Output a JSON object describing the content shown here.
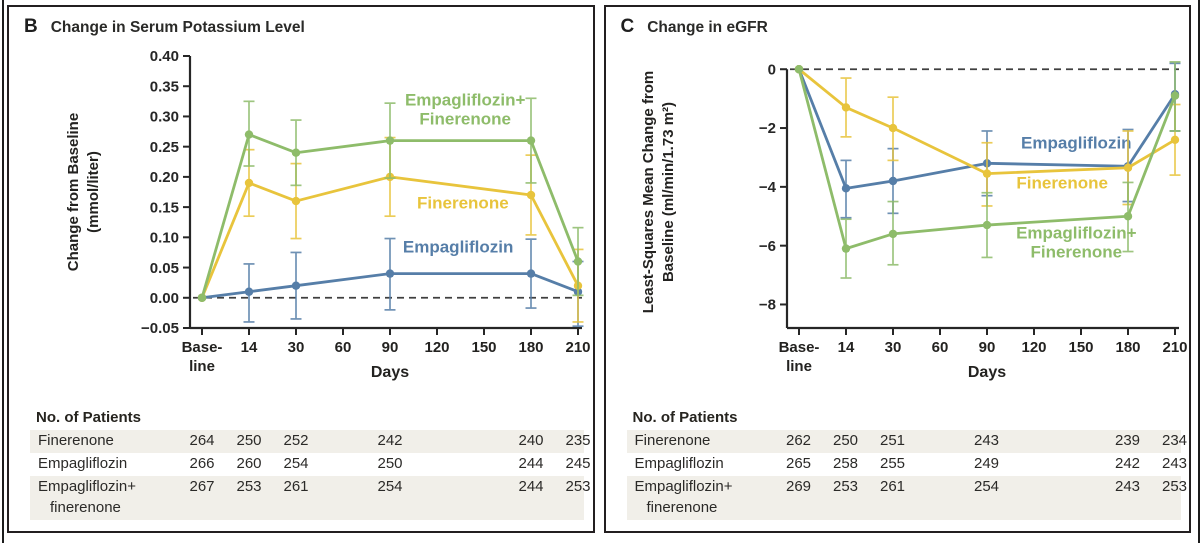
{
  "figure": {
    "panels": [
      {
        "letter": "B",
        "title": "Change in Serum Potassium Level",
        "patients": {
          "header": "No. of Patients",
          "rows": [
            {
              "label_lines": [
                "Finerenone"
              ],
              "shaded": true,
              "values": [
                "264",
                "250",
                "252",
                "242",
                "240",
                "235"
              ]
            },
            {
              "label_lines": [
                "Empagliflozin"
              ],
              "shaded": false,
              "values": [
                "266",
                "260",
                "254",
                "250",
                "244",
                "245"
              ]
            },
            {
              "label_lines": [
                "Empagliflozin+",
                "finerenone"
              ],
              "shaded": true,
              "values": [
                "267",
                "253",
                "261",
                "254",
                "244",
                "253"
              ]
            }
          ]
        }
      },
      {
        "letter": "C",
        "title": "Change in eGFR",
        "patients": {
          "header": "No. of Patients",
          "rows": [
            {
              "label_lines": [
                "Finerenone"
              ],
              "shaded": true,
              "values": [
                "262",
                "250",
                "251",
                "243",
                "239",
                "234"
              ]
            },
            {
              "label_lines": [
                "Empagliflozin"
              ],
              "shaded": false,
              "values": [
                "265",
                "258",
                "255",
                "249",
                "242",
                "243"
              ]
            },
            {
              "label_lines": [
                "Empagliflozin+",
                "finerenone"
              ],
              "shaded": true,
              "values": [
                "269",
                "253",
                "261",
                "254",
                "243",
                "253"
              ]
            }
          ]
        }
      }
    ],
    "colors": {
      "axis": "#262626",
      "dashed_zero_line": "#3f3f3f",
      "empagliflozin_blue": "#567ea8",
      "finerenone_yellow": "#e8c43c",
      "combination_green": "#8ebc6a",
      "table_row_shade": "#f1efe9",
      "text_dark": "#2a2a28"
    }
  },
  "chart_data": [
    {
      "type": "line",
      "panel": "B",
      "title": "Change in Serum Potassium Level",
      "xlabel": "Days",
      "ylabel": "Change from Baseline (mmol/liter)",
      "ylabel_lines": [
        "Change from Baseline",
        "(mmol/liter)"
      ],
      "ylabel_x": 66,
      "x_tick_labels": [
        [
          "Base-",
          "line"
        ],
        "14",
        "30",
        "60",
        "90",
        "120",
        "150",
        "180",
        "210"
      ],
      "x_data_indices": [
        0,
        1,
        2,
        4,
        7,
        8
      ],
      "x_data_days": [
        "Baseline",
        14,
        30,
        90,
        180,
        210
      ],
      "ylim": [
        -0.05,
        0.4
      ],
      "axis_top": 0.4,
      "yticks": [
        {
          "v": 0.4,
          "label": "0.40"
        },
        {
          "v": 0.35,
          "label": "0.35"
        },
        {
          "v": 0.3,
          "label": "0.30"
        },
        {
          "v": 0.25,
          "label": "0.25"
        },
        {
          "v": 0.2,
          "label": "0.20"
        },
        {
          "v": 0.15,
          "label": "0.15"
        },
        {
          "v": 0.1,
          "label": "0.10"
        },
        {
          "v": 0.05,
          "label": "0.05"
        },
        {
          "v": 0.0,
          "label": "0.00"
        },
        {
          "v": -0.05,
          "label": "−0.05"
        }
      ],
      "zero_dashed_line": true,
      "legend_position": "inline-labels",
      "grid": false,
      "series": [
        {
          "name": "Empagliflozin",
          "color": "#567ea8",
          "values": [
            0,
            0.01,
            0.02,
            0.04,
            0.04,
            0.01
          ],
          "err_lo": [
            null,
            -0.04,
            -0.035,
            -0.02,
            -0.017,
            -0.047
          ],
          "err_hi": [
            null,
            0.056,
            0.075,
            0.098,
            0.097,
            0.06
          ],
          "label": {
            "lines": [
              "Empagliflozin"
            ],
            "x_index": 5.45,
            "y": 0.075
          }
        },
        {
          "name": "Finerenone",
          "color": "#e8c43c",
          "values": [
            0,
            0.19,
            0.16,
            0.2,
            0.17,
            0.02
          ],
          "err_lo": [
            null,
            0.135,
            0.098,
            0.135,
            0.104,
            -0.04
          ],
          "err_hi": [
            null,
            0.245,
            0.222,
            0.265,
            0.236,
            0.08
          ],
          "label": {
            "lines": [
              "Finerenone"
            ],
            "x_index": 5.55,
            "y": 0.148
          }
        },
        {
          "name": "Empagliflozin+Finerenone",
          "color": "#8ebc6a",
          "values": [
            0,
            0.27,
            0.24,
            0.26,
            0.26,
            0.06
          ],
          "err_lo": [
            null,
            0.218,
            0.186,
            0.198,
            0.19,
            0.004
          ],
          "err_hi": [
            null,
            0.325,
            0.294,
            0.322,
            0.33,
            0.116
          ],
          "label": {
            "lines": [
              "Empagliflozin+",
              "Finerenone"
            ],
            "x_index": 5.6,
            "y": 0.318
          }
        }
      ]
    },
    {
      "type": "line",
      "panel": "C",
      "title": "Change in eGFR",
      "xlabel": "Days",
      "ylabel": "Least-Squares Mean Change from Baseline (ml/min/1.73 m²)",
      "ylabel_lines": [
        "Least-Squares Mean Change from",
        "Baseline (ml/min/1.73 m²)"
      ],
      "ylabel_x": 44,
      "x_tick_labels": [
        [
          "Base-",
          "line"
        ],
        "14",
        "30",
        "60",
        "90",
        "120",
        "150",
        "180",
        "210"
      ],
      "x_data_indices": [
        0,
        1,
        2,
        4,
        7,
        8
      ],
      "x_data_days": [
        "Baseline",
        14,
        30,
        90,
        180,
        210
      ],
      "ylim": [
        -8.8,
        0.45
      ],
      "axis_top": 0,
      "yticks": [
        {
          "v": 0,
          "label": "0"
        },
        {
          "v": -2,
          "label": "−2"
        },
        {
          "v": -4,
          "label": "−4"
        },
        {
          "v": -6,
          "label": "−6"
        },
        {
          "v": -8,
          "label": "−8"
        }
      ],
      "zero_dashed_line": true,
      "legend_position": "inline-labels",
      "grid": false,
      "series": [
        {
          "name": "Empagliflozin",
          "color": "#567ea8",
          "values": [
            0,
            -4.05,
            -3.8,
            -3.2,
            -3.3,
            -0.85
          ],
          "err_lo": [
            null,
            -5.05,
            -4.9,
            -4.3,
            -4.5,
            -2.1
          ],
          "err_hi": [
            null,
            -3.1,
            -2.7,
            -2.1,
            -2.05,
            0.2
          ],
          "label": {
            "lines": [
              "Empagliflozin"
            ],
            "x_index": 5.9,
            "y": -2.7
          }
        },
        {
          "name": "Finerenone",
          "color": "#e8c43c",
          "values": [
            0,
            -1.3,
            -2.0,
            -3.55,
            -3.35,
            -2.4
          ],
          "err_lo": [
            null,
            -2.3,
            -3.1,
            -4.65,
            -4.6,
            -3.6
          ],
          "err_hi": [
            null,
            -0.3,
            -0.95,
            -2.5,
            -2.1,
            -1.2
          ],
          "label": {
            "lines": [
              "Finerenone"
            ],
            "x_index": 5.6,
            "y": -4.05
          }
        },
        {
          "name": "Empagliflozin+Finerenone",
          "color": "#8ebc6a",
          "values": [
            0,
            -6.1,
            -5.6,
            -5.3,
            -5.0,
            -0.9
          ],
          "err_lo": [
            null,
            -7.1,
            -6.65,
            -6.4,
            -6.2,
            -2.1
          ],
          "err_hi": [
            null,
            -5.1,
            -4.5,
            -4.2,
            -3.85,
            0.25
          ],
          "label": {
            "lines": [
              "Empagliflozin+",
              "Finerenone"
            ],
            "x_index": 5.9,
            "y": -5.75
          }
        }
      ]
    }
  ]
}
